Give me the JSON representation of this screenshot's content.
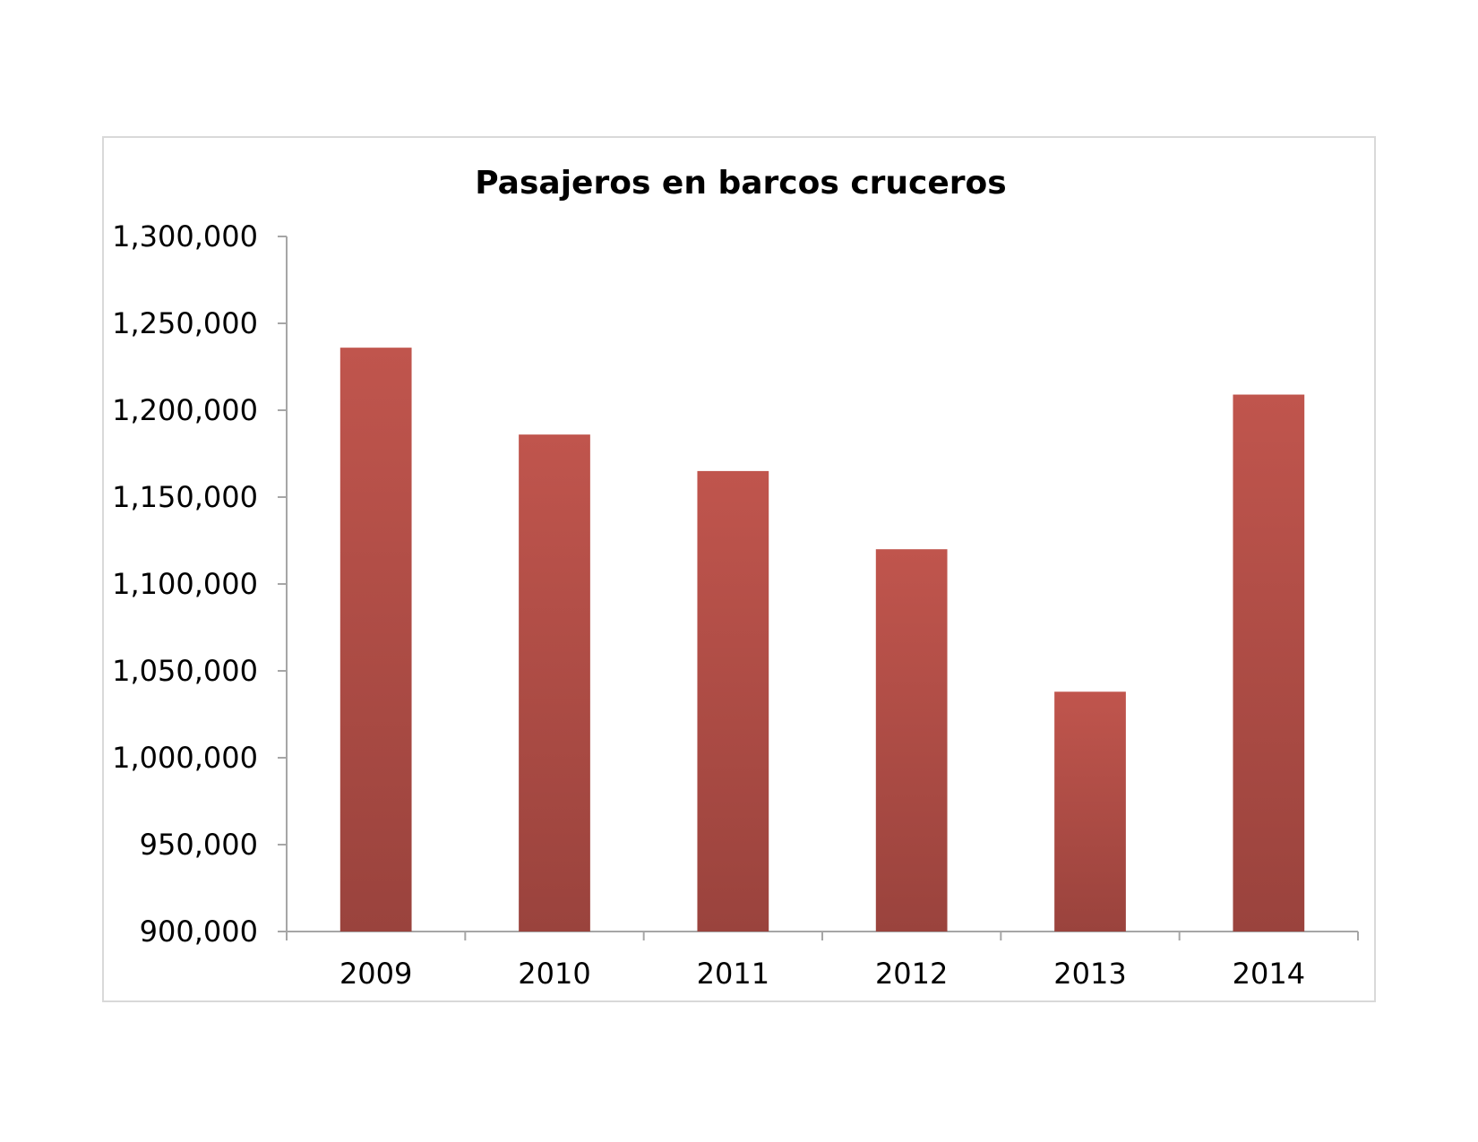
{
  "chart_data": {
    "type": "bar",
    "title": "Pasajeros en barcos cruceros",
    "xlabel": "",
    "ylabel": "",
    "categories": [
      "2009",
      "2010",
      "2011",
      "2012",
      "2013",
      "2014"
    ],
    "values": [
      1236000,
      1186000,
      1165000,
      1120000,
      1038000,
      1209000
    ],
    "ylim": [
      900000,
      1300000
    ],
    "yticks": [
      900000,
      950000,
      1000000,
      1050000,
      1100000,
      1150000,
      1200000,
      1250000,
      1300000
    ],
    "ytick_labels": [
      "900,000",
      "950,000",
      "1,000,000",
      "1,050,000",
      "1,100,000",
      "1,150,000",
      "1,200,000",
      "1,250,000",
      "1,300,000"
    ],
    "grid": false,
    "legend": "none",
    "colors": {
      "bar_top": "#c0554d",
      "bar_bottom": "#9a433d",
      "axis": "#a6a6a6"
    }
  }
}
